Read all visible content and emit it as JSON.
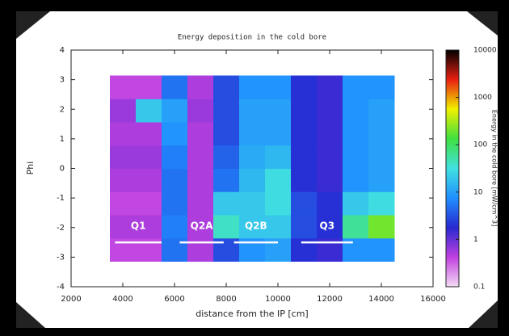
{
  "chart_data": {
    "type": "heatmap",
    "title": "Energy deposition in the cold bore",
    "xlabel": "distance from the IP [cm]",
    "ylabel": "Phi",
    "colorbar_label": "Energy in the cold bore [mW/cm^3]",
    "xlim": [
      2000,
      16000
    ],
    "xticks": [
      2000,
      4000,
      6000,
      8000,
      10000,
      12000,
      14000,
      16000
    ],
    "ylim": [
      -4,
      4
    ],
    "yticks": [
      -4,
      -3,
      -2,
      -1,
      0,
      1,
      2,
      3,
      4
    ],
    "clim": [
      0.1,
      10000
    ],
    "cticks": [
      0.1,
      1,
      10,
      100,
      1000,
      10000
    ],
    "log_color_scale": true,
    "colormap": [
      "#f4dcf4",
      "#c040e0",
      "#2828d0",
      "#2090ff",
      "#40e0e0",
      "#40e040",
      "#f0f000",
      "#e82010",
      "#000000"
    ],
    "x_edges": [
      3500,
      4500,
      5500,
      6500,
      7500,
      8500,
      9500,
      10500,
      11500,
      12500,
      13500,
      14500
    ],
    "y_edges": [
      -3.14,
      -2.355,
      -1.57,
      -0.785,
      0,
      0.785,
      1.57,
      2.355,
      3.14
    ],
    "values": [
      [
        0.4,
        0.4,
        5,
        0.5,
        3,
        8,
        10,
        2,
        1.5,
        8,
        8
      ],
      [
        0.5,
        0.5,
        6,
        0.5,
        40,
        20,
        20,
        3,
        2,
        60,
        200
      ],
      [
        0.4,
        0.4,
        5,
        0.5,
        20,
        20,
        30,
        3,
        2,
        20,
        30
      ],
      [
        0.5,
        0.5,
        5,
        0.5,
        5,
        15,
        30,
        2,
        1.5,
        8,
        10
      ],
      [
        0.6,
        0.6,
        6,
        0.5,
        4,
        12,
        15,
        2,
        1.5,
        8,
        10
      ],
      [
        0.5,
        0.5,
        8,
        0.5,
        3,
        10,
        10,
        2,
        1.5,
        8,
        10
      ],
      [
        0.6,
        20,
        10,
        0.6,
        3,
        10,
        10,
        2,
        1.5,
        8,
        10
      ],
      [
        0.4,
        0.4,
        5,
        0.5,
        3,
        8,
        8,
        2,
        1.5,
        8,
        8
      ]
    ],
    "annotations": [
      {
        "text": "Q1",
        "x": [
          3700,
          5500
        ],
        "y": -2.5
      },
      {
        "text": "Q2A",
        "x": [
          6200,
          7900
        ],
        "y": -2.5
      },
      {
        "text": "Q2B",
        "x": [
          8300,
          10000
        ],
        "y": -2.5
      },
      {
        "text": "Q3",
        "x": [
          10900,
          12900
        ],
        "y": -2.5
      }
    ]
  }
}
